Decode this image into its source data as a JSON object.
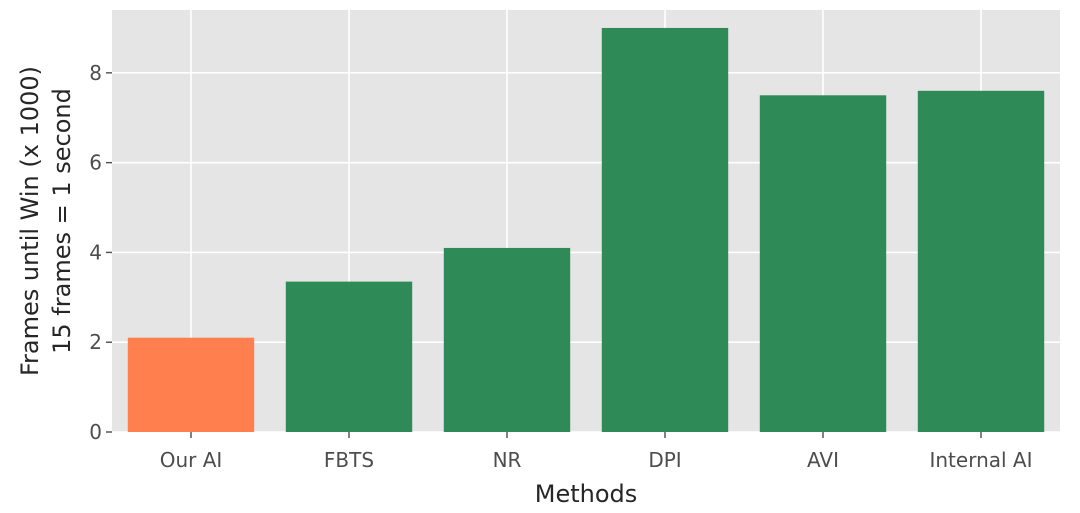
{
  "chart_data": {
    "type": "bar",
    "title": "",
    "xlabel": "Methods",
    "ylabel_lines": [
      "Frames until Win (x 1000)",
      "15 frames = 1 second"
    ],
    "categories": [
      "Our AI",
      "FBTS",
      "NR",
      "DPI",
      "AVI",
      "Internal AI"
    ],
    "values": [
      2.1,
      3.35,
      4.1,
      9.0,
      7.5,
      7.6
    ],
    "bar_colors": [
      "#ff7f4f",
      "#2e8b57",
      "#2e8b57",
      "#2e8b57",
      "#2e8b57",
      "#2e8b57"
    ],
    "ylim": [
      0,
      9.4
    ],
    "yticks": [
      0,
      2,
      4,
      6,
      8
    ],
    "grid": true,
    "background": "#e5e5e5",
    "grid_color": "#ffffff"
  }
}
